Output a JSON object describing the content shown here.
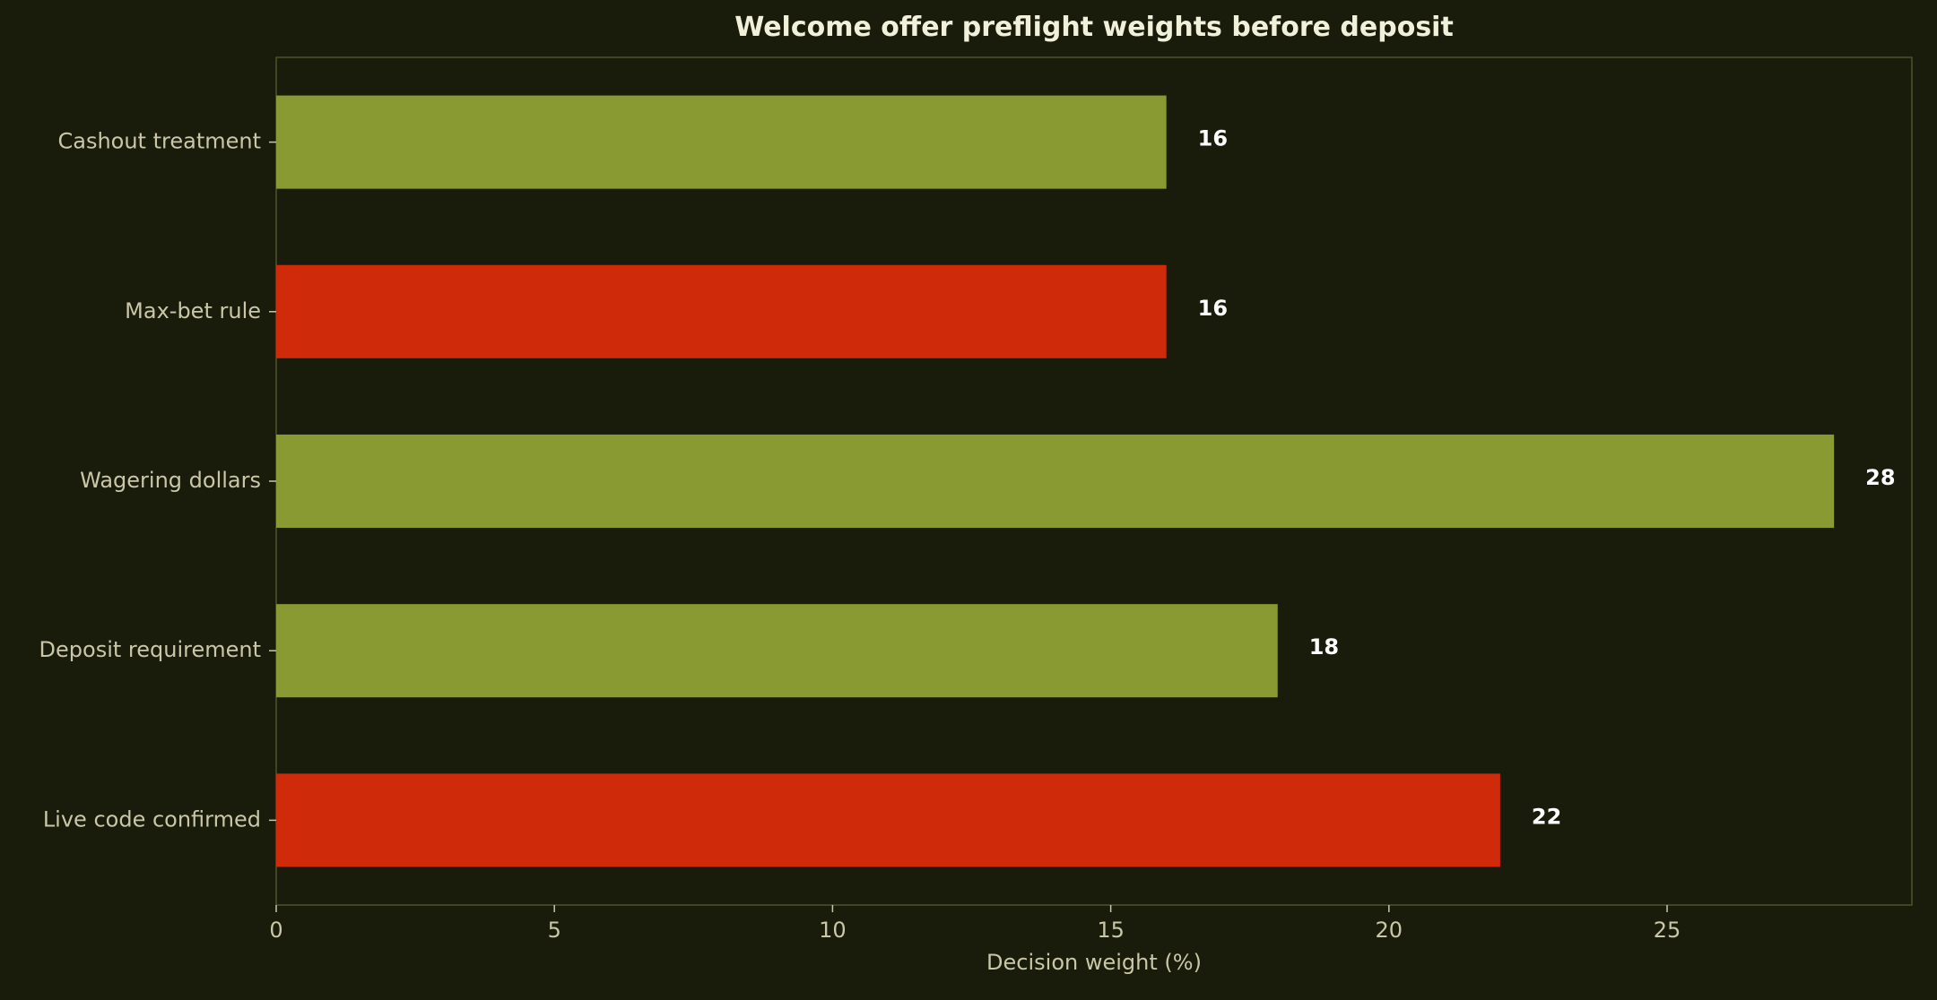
{
  "chart_data": {
    "type": "bar",
    "orientation": "horizontal",
    "title": "Welcome offer preflight weights before deposit",
    "xlabel": "Decision weight (%)",
    "ylabel": "",
    "categories": [
      "Cashout treatment",
      "Max-bet rule",
      "Wagering dollars",
      "Deposit requirement",
      "Live code confirmed"
    ],
    "values": [
      16,
      16,
      28,
      18,
      22
    ],
    "value_labels": [
      "16",
      "16",
      "28",
      "18",
      "22"
    ],
    "bar_colors": [
      "#8a9a33",
      "#cf2b0a",
      "#8a9a33",
      "#8a9a33",
      "#cf2b0a"
    ],
    "xlim": [
      0,
      29.4
    ],
    "xticks": [
      0,
      5,
      10,
      15,
      20,
      25
    ],
    "xtick_labels": [
      "0",
      "5",
      "10",
      "15",
      "20",
      "25"
    ],
    "grid": false,
    "legend": "none"
  },
  "colors": {
    "background": "#1a1c0b",
    "axes_frame": "#4e532f",
    "title_text": "#f1f0da",
    "tick_text": "#c9c7a8",
    "value_text": "#ffffff",
    "accent_green": "#8a9a33",
    "accent_red": "#cf2b0a"
  }
}
